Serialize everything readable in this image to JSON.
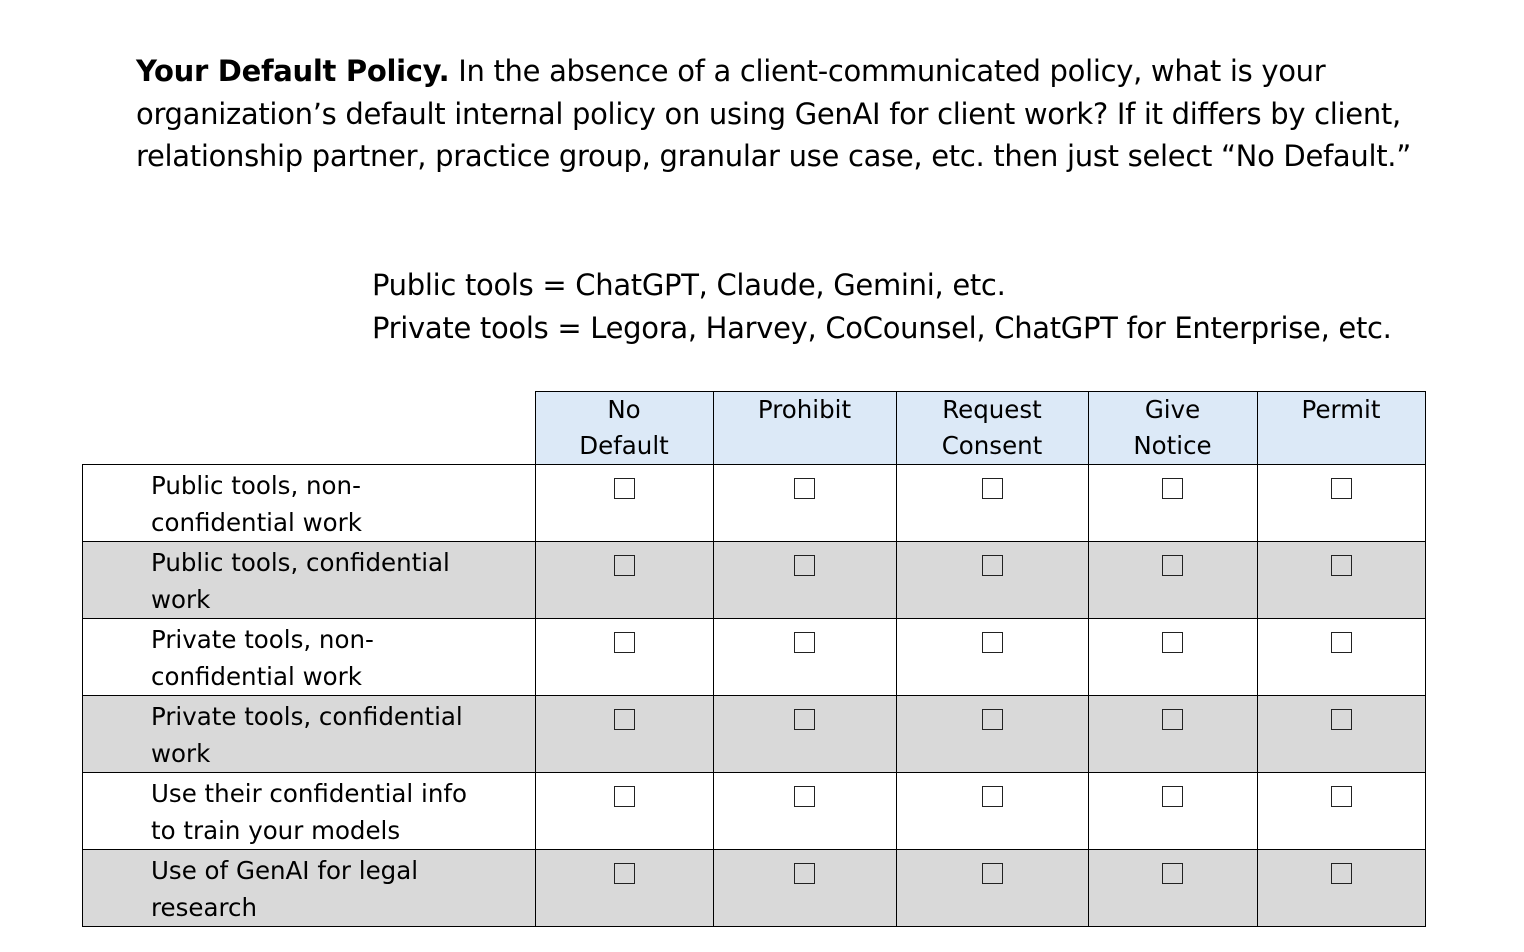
{
  "intro": {
    "heading": "Your Default Policy.",
    "text": " In the absence of a client-communicated policy, what is your organization’s default internal policy on using GenAI for client work? If it differs by client, relationship partner, practice group, granular use case, etc. then just select “No Default.”"
  },
  "definitions": {
    "public": "Public tools = ChatGPT, Claude, Gemini, etc.",
    "private": "Private tools = Legora, Harvey, CoCounsel, ChatGPT for Enterprise, etc."
  },
  "table": {
    "columns": [
      {
        "line1": "No",
        "line2": "Default"
      },
      {
        "line1": "Prohibit",
        "line2": ""
      },
      {
        "line1": "Request",
        "line2": "Consent"
      },
      {
        "line1": "Give",
        "line2": "Notice"
      },
      {
        "line1": "Permit",
        "line2": ""
      }
    ],
    "rows": [
      {
        "line1": "Public tools, non-",
        "line2": "confidential work"
      },
      {
        "line1": "Public tools, confidential",
        "line2": "work"
      },
      {
        "line1": "Private tools, non-",
        "line2": "confidential work"
      },
      {
        "line1": "Private tools, confidential",
        "line2": "work"
      },
      {
        "line1": "Use their confidential info",
        "line2": "to train your models"
      },
      {
        "line1": "Use of GenAI for legal",
        "line2": "research"
      }
    ]
  }
}
